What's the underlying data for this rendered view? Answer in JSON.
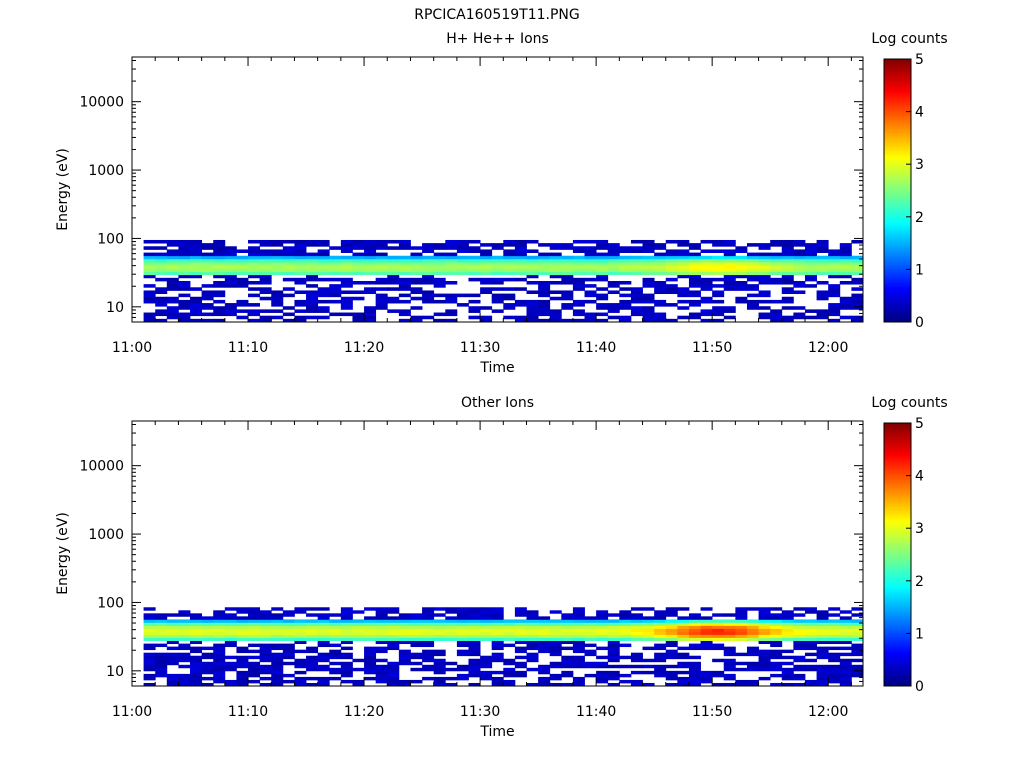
{
  "figure_title": "RPCICA160519T11.PNG",
  "panels": [
    {
      "id": "top",
      "title": "H+ He++ Ions",
      "ylabel": "Energy (eV)",
      "xlabel": "Time",
      "colorbar_label": "Log counts"
    },
    {
      "id": "bottom",
      "title": "Other Ions",
      "ylabel": "Energy (eV)",
      "xlabel": "Time",
      "colorbar_label": "Log counts"
    }
  ],
  "x_tick_labels": [
    "11:00",
    "11:10",
    "11:20",
    "11:30",
    "11:40",
    "11:50",
    "12:00"
  ],
  "y_tick_labels": [
    "10",
    "100",
    "1000",
    "10000"
  ],
  "colorbar_tick_labels": [
    "0",
    "1",
    "2",
    "3",
    "4",
    "5"
  ],
  "chart_data": [
    {
      "type": "heatmap",
      "title": "H+ He++ Ions",
      "xlabel": "Time",
      "ylabel": "Energy (eV)",
      "x_unit": "minutes after 11:00",
      "xlim": [
        0,
        63
      ],
      "ylim": [
        6,
        45000
      ],
      "y_scale": "log",
      "x_ticks": [
        "11:00",
        "11:10",
        "11:20",
        "11:30",
        "11:40",
        "11:50",
        "12:00"
      ],
      "y_ticks": [
        10,
        100,
        1000,
        10000
      ],
      "colorbar": {
        "label": "Log counts",
        "range": [
          0,
          5
        ],
        "colormap": "jet"
      },
      "energy_range_with_counts": [
        6,
        95
      ],
      "main_band": {
        "energy_low": 28,
        "energy_high": 55,
        "peak_energy": 38,
        "log_counts_typical": 2.7,
        "log_counts_peak_time": "11:50",
        "log_counts_peak": 3.2
      },
      "background_log_counts": 0.2
    },
    {
      "type": "heatmap",
      "title": "Other Ions",
      "xlabel": "Time",
      "ylabel": "Energy (eV)",
      "x_unit": "minutes after 11:00",
      "xlim": [
        0,
        63
      ],
      "ylim": [
        6,
        45000
      ],
      "y_scale": "log",
      "x_ticks": [
        "11:00",
        "11:10",
        "11:20",
        "11:30",
        "11:40",
        "11:50",
        "12:00"
      ],
      "y_ticks": [
        10,
        100,
        1000,
        10000
      ],
      "colorbar": {
        "label": "Log counts",
        "range": [
          0,
          5
        ],
        "colormap": "jet"
      },
      "energy_range_with_counts": [
        6,
        85
      ],
      "main_band": {
        "energy_low": 27,
        "energy_high": 55,
        "peak_energy": 38,
        "log_counts_typical": 3.0,
        "log_counts_peak_time": "11:50",
        "log_counts_peak": 4.2
      },
      "background_log_counts": 0.2
    }
  ]
}
